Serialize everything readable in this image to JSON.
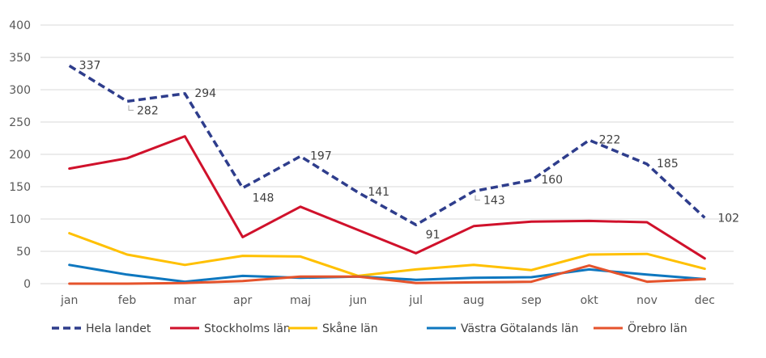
{
  "chart_data": {
    "type": "line",
    "title": "",
    "xlabel": "",
    "ylabel": "",
    "categories": [
      "jan",
      "feb",
      "mar",
      "apr",
      "maj",
      "jun",
      "jul",
      "aug",
      "sep",
      "okt",
      "nov",
      "dec"
    ],
    "ylim": [
      0,
      400
    ],
    "yticks": [
      "0",
      "50",
      "100",
      "150",
      "200",
      "250",
      "300",
      "350",
      "400"
    ],
    "grid": true,
    "legend_position": "bottom",
    "series": [
      {
        "name": "Hela landet",
        "color": "#2E3D8C",
        "dashed": true,
        "values": [
          337,
          282,
          294,
          148,
          197,
          141,
          91,
          143,
          160,
          222,
          185,
          102
        ],
        "labels": [
          "337",
          "282",
          "294",
          "148",
          "197",
          "141",
          "91",
          "143",
          "160",
          "222",
          "185",
          "102"
        ]
      },
      {
        "name": "Stockholms län",
        "color": "#D0112B",
        "dashed": false,
        "values": [
          178,
          194,
          228,
          72,
          119,
          83,
          47,
          89,
          96,
          97,
          95,
          39
        ]
      },
      {
        "name": "Skåne län",
        "color": "#FFC000",
        "dashed": false,
        "values": [
          78,
          45,
          29,
          43,
          42,
          12,
          22,
          29,
          21,
          45,
          46,
          23
        ]
      },
      {
        "name": "Västra Götalands län",
        "color": "#0E77BF",
        "dashed": false,
        "values": [
          29,
          14,
          3,
          12,
          9,
          11,
          6,
          9,
          10,
          22,
          14,
          7
        ]
      },
      {
        "name": "Örebro län",
        "color": "#E5532C",
        "dashed": false,
        "values": [
          0,
          0,
          1,
          4,
          11,
          11,
          1,
          2,
          3,
          28,
          3,
          7
        ]
      }
    ]
  }
}
